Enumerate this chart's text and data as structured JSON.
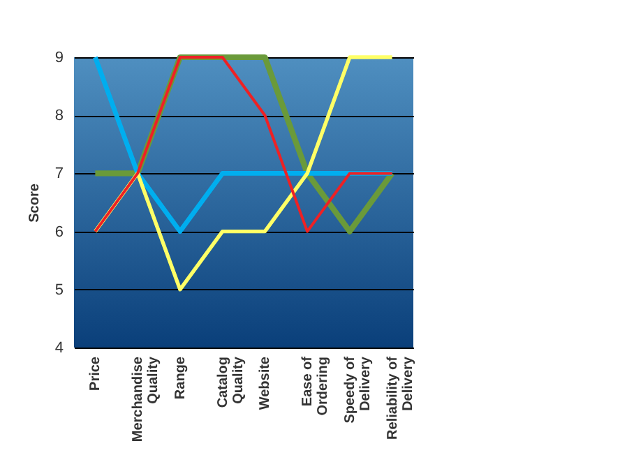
{
  "chart_data": {
    "type": "line",
    "ylabel": "Score",
    "categories": [
      "Price",
      "Merchandise Quality",
      "Range",
      "Catalog Quality",
      "Website",
      "Ease of Ordering",
      "Speedy of Delivery",
      "Reliability of Delivery"
    ],
    "series": [
      {
        "color": "#6a9a3a",
        "values": [
          7,
          7,
          9,
          9,
          9,
          7,
          6,
          7
        ]
      },
      {
        "color": "#00aeef",
        "values": [
          9,
          7,
          6,
          7,
          7,
          7,
          7,
          7
        ]
      },
      {
        "color": "#ffff66",
        "values": [
          6,
          7,
          5,
          6,
          6,
          7,
          9,
          9
        ]
      },
      {
        "color": "#ee2124",
        "values": [
          6,
          7,
          9,
          9,
          8,
          6,
          7,
          7
        ]
      }
    ],
    "ylim": [
      4,
      9
    ],
    "yticks": [
      4,
      5,
      6,
      7,
      8,
      9
    ],
    "grid": "y",
    "marker": "none",
    "line_style": "solid"
  }
}
